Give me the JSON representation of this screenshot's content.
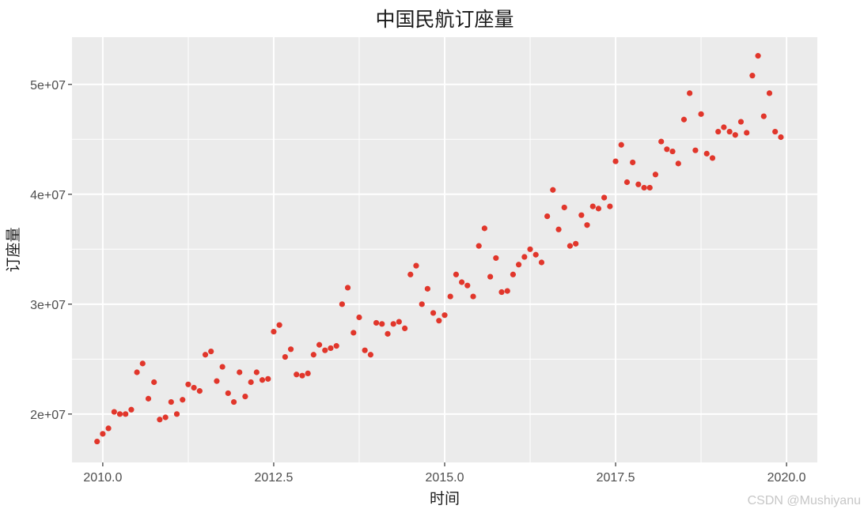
{
  "chart_data": {
    "type": "scatter",
    "title": "中国民航订座量",
    "xlabel": "时间",
    "ylabel": "订座量",
    "xlim": [
      2009.55,
      2020.45
    ],
    "ylim": [
      15600000,
      54300000
    ],
    "x_ticks": [
      2010.0,
      2012.5,
      2015.0,
      2017.5,
      2020.0
    ],
    "x_tick_labels": [
      "2010.0",
      "2012.5",
      "2015.0",
      "2017.5",
      "2020.0"
    ],
    "y_ticks": [
      20000000,
      30000000,
      40000000,
      50000000
    ],
    "y_tick_labels": [
      "2e+07",
      "3e+07",
      "4e+07",
      "5e+07"
    ],
    "grid": true,
    "panel_background": "#EBEBEB",
    "point_color": "#E1362B",
    "series": [
      {
        "x": [
          2009.917,
          2010.0,
          2010.083,
          2010.167,
          2010.25,
          2010.333,
          2010.417,
          2010.5,
          2010.583,
          2010.667,
          2010.75,
          2010.833,
          2010.917,
          2011.0,
          2011.083,
          2011.167,
          2011.25,
          2011.333,
          2011.417,
          2011.5,
          2011.583,
          2011.667,
          2011.75,
          2011.833,
          2011.917,
          2012.0,
          2012.083,
          2012.167,
          2012.25,
          2012.333,
          2012.417,
          2012.5,
          2012.583,
          2012.667,
          2012.75,
          2012.833,
          2012.917,
          2013.0,
          2013.083,
          2013.167,
          2013.25,
          2013.333,
          2013.417,
          2013.5,
          2013.583,
          2013.667,
          2013.75,
          2013.833,
          2013.917,
          2014.0,
          2014.083,
          2014.167,
          2014.25,
          2014.333,
          2014.417,
          2014.5,
          2014.583,
          2014.667,
          2014.75,
          2014.833,
          2014.917,
          2015.0,
          2015.083,
          2015.167,
          2015.25,
          2015.333,
          2015.417,
          2015.5,
          2015.583,
          2015.667,
          2015.75,
          2015.833,
          2015.917,
          2016.0,
          2016.083,
          2016.167,
          2016.25,
          2016.333,
          2016.417,
          2016.5,
          2016.583,
          2016.667,
          2016.75,
          2016.833,
          2016.917,
          2017.0,
          2017.083,
          2017.167,
          2017.25,
          2017.333,
          2017.417,
          2017.5,
          2017.583,
          2017.667,
          2017.75,
          2017.833,
          2017.917,
          2018.0,
          2018.083,
          2018.167,
          2018.25,
          2018.333,
          2018.417,
          2018.5,
          2018.583,
          2018.667,
          2018.75,
          2018.833,
          2018.917,
          2019.0,
          2019.083,
          2019.167,
          2019.25,
          2019.333,
          2019.417,
          2019.5,
          2019.583,
          2019.667,
          2019.75,
          2019.833,
          2019.917
        ],
        "y": [
          17500000,
          18200000,
          18700000,
          20200000,
          20000000,
          20000000,
          20400000,
          23800000,
          24600000,
          21400000,
          22900000,
          19500000,
          19700000,
          21100000,
          20000000,
          21300000,
          22700000,
          22400000,
          22100000,
          25400000,
          25700000,
          23000000,
          24300000,
          21900000,
          21100000,
          23800000,
          21600000,
          22900000,
          23800000,
          23100000,
          23200000,
          27500000,
          28100000,
          25200000,
          25900000,
          23600000,
          23500000,
          23700000,
          25400000,
          26300000,
          25800000,
          26000000,
          26200000,
          30000000,
          31500000,
          27400000,
          28800000,
          25800000,
          25400000,
          28300000,
          28200000,
          27300000,
          28200000,
          28400000,
          27800000,
          32700000,
          33500000,
          30000000,
          31400000,
          29200000,
          28500000,
          29000000,
          30700000,
          32700000,
          32000000,
          31700000,
          30700000,
          35300000,
          36900000,
          32500000,
          34200000,
          31100000,
          31200000,
          32700000,
          33600000,
          34300000,
          35000000,
          34500000,
          33800000,
          38000000,
          40400000,
          36800000,
          38800000,
          35300000,
          35500000,
          38100000,
          37200000,
          38900000,
          38700000,
          39700000,
          38900000,
          43000000,
          44500000,
          41100000,
          42900000,
          40900000,
          40600000,
          40600000,
          41800000,
          44800000,
          44100000,
          43900000,
          42800000,
          46800000,
          49200000,
          44000000,
          47300000,
          43700000,
          43300000,
          45700000,
          46100000,
          45700000,
          45400000,
          46600000,
          45600000,
          50800000,
          52600000,
          47100000,
          49200000,
          45700000,
          45200000
        ]
      }
    ]
  },
  "watermark": "CSDN @Mushiyanu"
}
